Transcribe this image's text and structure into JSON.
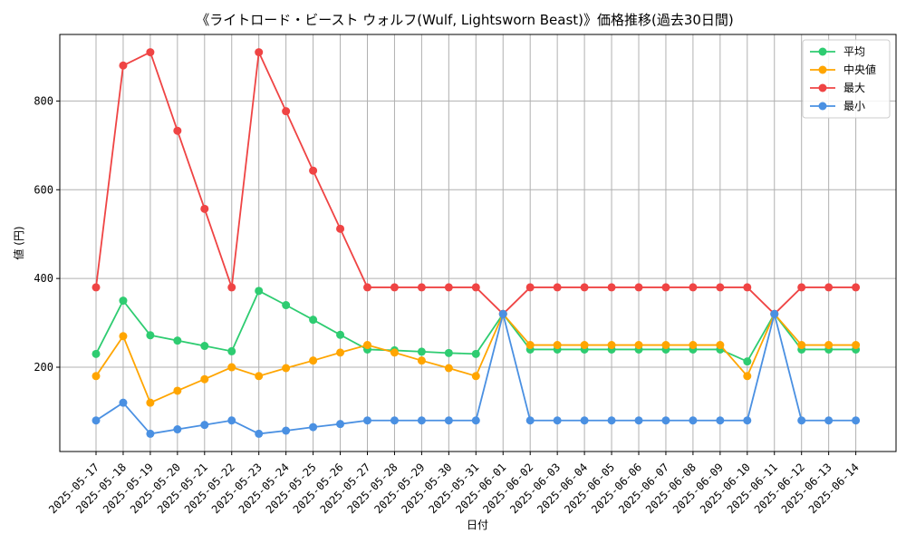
{
  "chart_data": {
    "type": "line",
    "title": "《ライトロード・ビースト ウォルフ(Wulf, Lightsworn Beast)》価格推移(過去30日間)",
    "xlabel": "日付",
    "ylabel": "値 (円)",
    "ylim": [
      10,
      950
    ],
    "yticks": [
      200,
      400,
      600,
      800
    ],
    "grid": true,
    "legend_position": "top-right",
    "categories": [
      "2025-05-17",
      "2025-05-18",
      "2025-05-19",
      "2025-05-20",
      "2025-05-21",
      "2025-05-22",
      "2025-05-23",
      "2025-05-24",
      "2025-05-25",
      "2025-05-26",
      "2025-05-27",
      "2025-05-28",
      "2025-05-29",
      "2025-05-30",
      "2025-05-31",
      "2025-06-01",
      "2025-06-02",
      "2025-06-03",
      "2025-06-04",
      "2025-06-05",
      "2025-06-06",
      "2025-06-07",
      "2025-06-08",
      "2025-06-09",
      "2025-06-10",
      "2025-06-11",
      "2025-06-12",
      "2025-06-13",
      "2025-06-14"
    ],
    "series": [
      {
        "name": "平均",
        "color": "#2ecc71",
        "values": [
          230,
          350,
          272,
          260,
          248,
          236,
          372,
          340,
          307,
          273,
          240,
          238,
          235,
          232,
          230,
          320,
          240,
          240,
          240,
          240,
          240,
          240,
          240,
          240,
          213,
          320,
          240,
          240,
          240
        ]
      },
      {
        "name": "中央値",
        "color": "#ffa500",
        "values": [
          180,
          270,
          120,
          147,
          173,
          200,
          180,
          198,
          215,
          233,
          250,
          233,
          215,
          198,
          180,
          320,
          250,
          250,
          250,
          250,
          250,
          250,
          250,
          250,
          180,
          320,
          250,
          250,
          250
        ]
      },
      {
        "name": "最大",
        "color": "#ef4444",
        "values": [
          380,
          880,
          910,
          733,
          557,
          380,
          910,
          777,
          643,
          512,
          380,
          380,
          380,
          380,
          380,
          320,
          380,
          380,
          380,
          380,
          380,
          380,
          380,
          380,
          380,
          320,
          380,
          380,
          380
        ]
      },
      {
        "name": "最小",
        "color": "#4a90e2",
        "values": [
          80,
          120,
          50,
          60,
          70,
          80,
          50,
          57,
          65,
          72,
          80,
          80,
          80,
          80,
          80,
          320,
          80,
          80,
          80,
          80,
          80,
          80,
          80,
          80,
          80,
          320,
          80,
          80,
          80
        ]
      }
    ]
  }
}
